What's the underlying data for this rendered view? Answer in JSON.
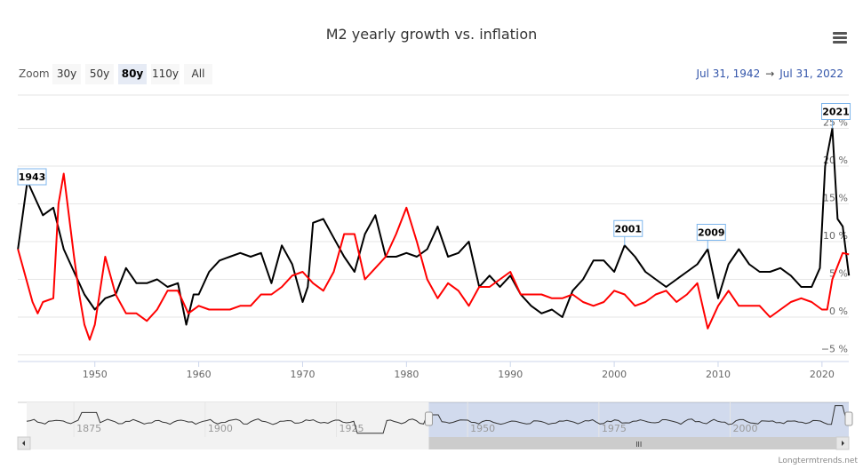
{
  "title": "M2 yearly growth vs. inflation",
  "zoom": {
    "label": "Zoom",
    "buttons": [
      "30y",
      "50y",
      "80y",
      "110y",
      "All"
    ],
    "selected": "80y"
  },
  "range": {
    "from": "Jul 31, 1942",
    "arrow": "→",
    "to": "Jul 31, 2022"
  },
  "credit": "Longtermtrends.net",
  "navigator_ticks": [
    "1875",
    "1900",
    "1925",
    "1950",
    "1975",
    "2000"
  ],
  "chart_data": {
    "type": "line",
    "title": "M2 yearly growth vs. inflation",
    "xlim": [
      1942.58,
      2022.58
    ],
    "ylim": [
      -5,
      25
    ],
    "x_ticks": [
      "1950",
      "1960",
      "1970",
      "1980",
      "1990",
      "2000",
      "2010",
      "2020"
    ],
    "y_ticks": [
      "−5 %",
      "0 %",
      "5 %",
      "10 %",
      "15 %",
      "20 %",
      "25 %"
    ],
    "y_tick_values": [
      -5,
      0,
      5,
      10,
      15,
      20,
      25
    ],
    "grid": true,
    "series": [
      {
        "color": "#000000",
        "points": [
          [
            1942.6,
            9
          ],
          [
            1943.5,
            18
          ],
          [
            1944.5,
            15
          ],
          [
            1945,
            13.5
          ],
          [
            1946,
            14.5
          ],
          [
            1947,
            9
          ],
          [
            1948,
            6
          ],
          [
            1949,
            3
          ],
          [
            1950,
            1
          ],
          [
            1951,
            2.5
          ],
          [
            1952,
            3
          ],
          [
            1953,
            6.5
          ],
          [
            1954,
            4.5
          ],
          [
            1955,
            4.5
          ],
          [
            1956,
            5
          ],
          [
            1957,
            4
          ],
          [
            1958,
            4.5
          ],
          [
            1958.8,
            -1
          ],
          [
            1959.5,
            3
          ],
          [
            1960,
            3
          ],
          [
            1961,
            6
          ],
          [
            1962,
            7.5
          ],
          [
            1963,
            8
          ],
          [
            1964,
            8.5
          ],
          [
            1965,
            8
          ],
          [
            1966,
            8.5
          ],
          [
            1967,
            4.5
          ],
          [
            1968,
            9.5
          ],
          [
            1969,
            7
          ],
          [
            1970,
            2
          ],
          [
            1970.5,
            4
          ],
          [
            1971,
            12.5
          ],
          [
            1972,
            13
          ],
          [
            1973,
            10.5
          ],
          [
            1974,
            8
          ],
          [
            1975,
            6
          ],
          [
            1976,
            11
          ],
          [
            1977,
            13.5
          ],
          [
            1978,
            8
          ],
          [
            1979,
            8
          ],
          [
            1980,
            8.5
          ],
          [
            1981,
            8
          ],
          [
            1982,
            9
          ],
          [
            1983,
            12
          ],
          [
            1984,
            8
          ],
          [
            1985,
            8.5
          ],
          [
            1986,
            10
          ],
          [
            1987,
            4
          ],
          [
            1988,
            5.5
          ],
          [
            1989,
            4
          ],
          [
            1990,
            5.5
          ],
          [
            1991,
            3
          ],
          [
            1992,
            1.5
          ],
          [
            1993,
            0.5
          ],
          [
            1994,
            1
          ],
          [
            1995,
            0
          ],
          [
            1996,
            3.5
          ],
          [
            1997,
            5
          ],
          [
            1998,
            7.5
          ],
          [
            1999,
            7.5
          ],
          [
            2000,
            6
          ],
          [
            2001,
            9.5
          ],
          [
            2002,
            8
          ],
          [
            2003,
            6
          ],
          [
            2004,
            5
          ],
          [
            2005,
            4
          ],
          [
            2006,
            5
          ],
          [
            2007,
            6
          ],
          [
            2008,
            7
          ],
          [
            2009,
            9
          ],
          [
            2010,
            2.5
          ],
          [
            2011,
            7
          ],
          [
            2012,
            9
          ],
          [
            2013,
            7
          ],
          [
            2014,
            6
          ],
          [
            2015,
            6
          ],
          [
            2016,
            6.5
          ],
          [
            2017,
            5.5
          ],
          [
            2018,
            4
          ],
          [
            2019,
            4
          ],
          [
            2019.8,
            6.5
          ],
          [
            2020.3,
            20
          ],
          [
            2021,
            25
          ],
          [
            2021.5,
            13
          ],
          [
            2022,
            12
          ],
          [
            2022.6,
            5.5
          ]
        ]
      },
      {
        "color": "#ff0000",
        "points": [
          [
            1942.6,
            9
          ],
          [
            1943,
            7
          ],
          [
            1944,
            2
          ],
          [
            1944.5,
            0.5
          ],
          [
            1945,
            2
          ],
          [
            1946,
            2.5
          ],
          [
            1946.5,
            15
          ],
          [
            1947,
            19
          ],
          [
            1948,
            8
          ],
          [
            1948.5,
            3
          ],
          [
            1949,
            -1
          ],
          [
            1949.5,
            -3
          ],
          [
            1950,
            -1
          ],
          [
            1951,
            8
          ],
          [
            1952,
            3
          ],
          [
            1953,
            0.5
          ],
          [
            1954,
            0.5
          ],
          [
            1955,
            -0.5
          ],
          [
            1956,
            1
          ],
          [
            1957,
            3.5
          ],
          [
            1958,
            3.5
          ],
          [
            1959,
            0.5
          ],
          [
            1960,
            1.5
          ],
          [
            1961,
            1
          ],
          [
            1962,
            1
          ],
          [
            1963,
            1
          ],
          [
            1964,
            1.5
          ],
          [
            1965,
            1.5
          ],
          [
            1966,
            3
          ],
          [
            1967,
            3
          ],
          [
            1968,
            4
          ],
          [
            1969,
            5.5
          ],
          [
            1970,
            6
          ],
          [
            1971,
            4.5
          ],
          [
            1972,
            3.5
          ],
          [
            1973,
            6
          ],
          [
            1974,
            11
          ],
          [
            1975,
            11
          ],
          [
            1976,
            5
          ],
          [
            1977,
            6.5
          ],
          [
            1978,
            8
          ],
          [
            1979,
            11
          ],
          [
            1980,
            14.5
          ],
          [
            1981,
            10
          ],
          [
            1982,
            5
          ],
          [
            1983,
            2.5
          ],
          [
            1984,
            4.5
          ],
          [
            1985,
            3.5
          ],
          [
            1986,
            1.5
          ],
          [
            1987,
            4
          ],
          [
            1988,
            4
          ],
          [
            1989,
            5
          ],
          [
            1990,
            6
          ],
          [
            1991,
            3
          ],
          [
            1992,
            3
          ],
          [
            1993,
            3
          ],
          [
            1994,
            2.5
          ],
          [
            1995,
            2.5
          ],
          [
            1996,
            3
          ],
          [
            1997,
            2
          ],
          [
            1998,
            1.5
          ],
          [
            1999,
            2
          ],
          [
            2000,
            3.5
          ],
          [
            2001,
            3
          ],
          [
            2002,
            1.5
          ],
          [
            2003,
            2
          ],
          [
            2004,
            3
          ],
          [
            2005,
            3.5
          ],
          [
            2006,
            2
          ],
          [
            2007,
            3
          ],
          [
            2008,
            4.5
          ],
          [
            2009,
            -1.5
          ],
          [
            2010,
            1.5
          ],
          [
            2011,
            3.5
          ],
          [
            2012,
            1.5
          ],
          [
            2013,
            1.5
          ],
          [
            2014,
            1.5
          ],
          [
            2015,
            0
          ],
          [
            2016,
            1
          ],
          [
            2017,
            2
          ],
          [
            2018,
            2.5
          ],
          [
            2019,
            2
          ],
          [
            2020,
            1
          ],
          [
            2020.5,
            1
          ],
          [
            2021,
            5
          ],
          [
            2022,
            8.5
          ],
          [
            2022.6,
            8.3
          ]
        ]
      }
    ],
    "flags": [
      {
        "x": 1943.5,
        "y": 18,
        "text": "1943"
      },
      {
        "x": 2001,
        "y": 9.5,
        "text": "2001"
      },
      {
        "x": 2009,
        "y": 9,
        "text": "2009"
      },
      {
        "x": 2021,
        "y": 25,
        "text": "2021"
      }
    ]
  }
}
